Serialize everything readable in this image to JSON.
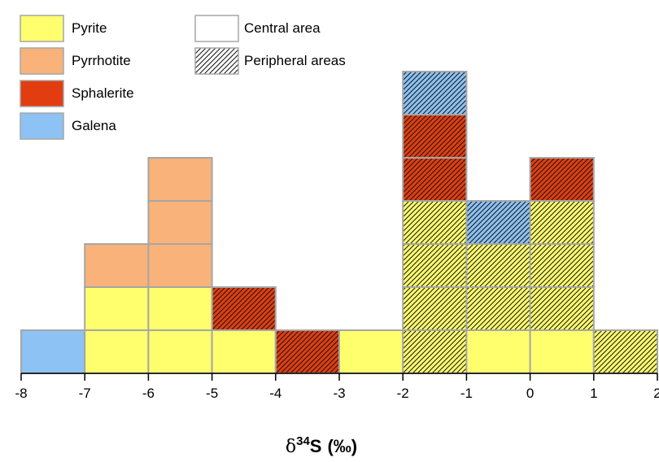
{
  "chart_data": {
    "type": "bar",
    "subtype": "stacked histogram",
    "xlabel_parts": {
      "delta": "δ",
      "superscript": "34",
      "element": "S",
      "unit": "(‰)"
    },
    "ylabel": "",
    "xlim": [
      -8,
      2
    ],
    "xticks": [
      "-8",
      "-7",
      "-6",
      "-5",
      "-4",
      "-3",
      "-2",
      "-1",
      "0",
      "1",
      "2"
    ],
    "y_unit": "count",
    "grid": false,
    "legend_position": "top-left",
    "minerals": [
      {
        "key": "pyrite",
        "label": "Pyrite",
        "color": "#FFFF6E"
      },
      {
        "key": "pyrrhotite",
        "label": "Pyrrhotite",
        "color": "#F8B27A"
      },
      {
        "key": "sphalerite",
        "label": "Sphalerite",
        "color": "#E23D10"
      },
      {
        "key": "galena",
        "label": "Galena",
        "color": "#8CC2F4"
      }
    ],
    "areas": [
      {
        "key": "central",
        "label": "Central area",
        "pattern": "none"
      },
      {
        "key": "peripheral",
        "label": "Peripheral areas",
        "pattern": "hatched"
      }
    ],
    "bins": [
      {
        "range": [
          -8,
          -7
        ],
        "stack": [
          {
            "mineral": "galena",
            "area": "central"
          }
        ]
      },
      {
        "range": [
          -7,
          -6
        ],
        "stack": [
          {
            "mineral": "pyrite",
            "area": "central"
          },
          {
            "mineral": "pyrite",
            "area": "central"
          },
          {
            "mineral": "pyrrhotite",
            "area": "central"
          }
        ]
      },
      {
        "range": [
          -6,
          -5
        ],
        "stack": [
          {
            "mineral": "pyrite",
            "area": "central"
          },
          {
            "mineral": "pyrite",
            "area": "central"
          },
          {
            "mineral": "pyrrhotite",
            "area": "central"
          },
          {
            "mineral": "pyrrhotite",
            "area": "central"
          },
          {
            "mineral": "pyrrhotite",
            "area": "central"
          }
        ]
      },
      {
        "range": [
          -5,
          -4
        ],
        "stack": [
          {
            "mineral": "pyrite",
            "area": "central"
          },
          {
            "mineral": "sphalerite",
            "area": "peripheral"
          }
        ]
      },
      {
        "range": [
          -4,
          -3
        ],
        "stack": [
          {
            "mineral": "sphalerite",
            "area": "peripheral"
          }
        ]
      },
      {
        "range": [
          -3,
          -2
        ],
        "stack": [
          {
            "mineral": "pyrite",
            "area": "central"
          }
        ]
      },
      {
        "range": [
          -2,
          -1
        ],
        "stack": [
          {
            "mineral": "pyrite",
            "area": "peripheral"
          },
          {
            "mineral": "pyrite",
            "area": "peripheral"
          },
          {
            "mineral": "pyrite",
            "area": "peripheral"
          },
          {
            "mineral": "pyrite",
            "area": "peripheral"
          },
          {
            "mineral": "sphalerite",
            "area": "peripheral"
          },
          {
            "mineral": "sphalerite",
            "area": "peripheral"
          },
          {
            "mineral": "galena",
            "area": "peripheral"
          }
        ]
      },
      {
        "range": [
          -1,
          0
        ],
        "stack": [
          {
            "mineral": "pyrite",
            "area": "central"
          },
          {
            "mineral": "pyrite",
            "area": "peripheral"
          },
          {
            "mineral": "pyrite",
            "area": "peripheral"
          },
          {
            "mineral": "galena",
            "area": "peripheral"
          }
        ]
      },
      {
        "range": [
          0,
          1
        ],
        "stack": [
          {
            "mineral": "pyrite",
            "area": "central"
          },
          {
            "mineral": "pyrite",
            "area": "peripheral"
          },
          {
            "mineral": "pyrite",
            "area": "peripheral"
          },
          {
            "mineral": "pyrite",
            "area": "peripheral"
          },
          {
            "mineral": "sphalerite",
            "area": "peripheral"
          }
        ]
      },
      {
        "range": [
          1,
          2
        ],
        "stack": [
          {
            "mineral": "pyrite",
            "area": "peripheral"
          }
        ]
      }
    ]
  }
}
